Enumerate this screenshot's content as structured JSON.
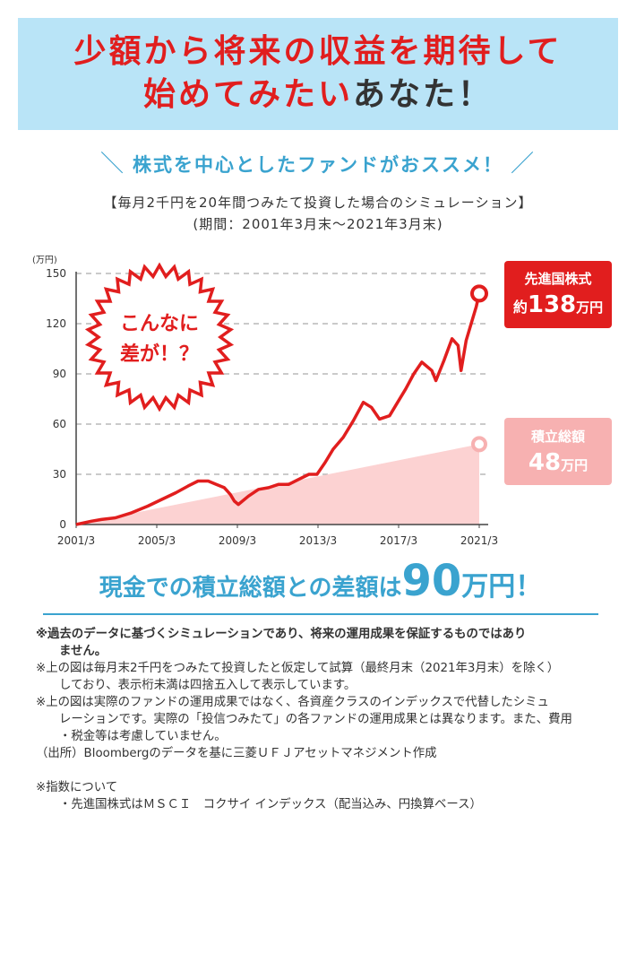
{
  "hero": {
    "line1": "少額から将来の収益を期待して",
    "line2_red": "始めてみたい",
    "line2_dark": "あなた！"
  },
  "subhead": {
    "slash_left": "＼",
    "text": "株式を中心としたファンドがおススメ！",
    "slash_right": "／"
  },
  "chart_title": {
    "line1": "【毎月2千円を20年間つみたて投資した場合のシミュレーション】",
    "line2": "(期間：2001年3月末〜2021年3月末)"
  },
  "headline": {
    "part1": "現金での積立総額との差額は",
    "amount": "90",
    "unit": "万円！"
  },
  "notes": [
    {
      "text": "※過去のデータに基づくシミュレーションであり、将来の運用成果を保証するものではあり",
      "bold": true
    },
    {
      "text": "ません。",
      "bold": true,
      "indent": true
    },
    {
      "text": "※上の図は毎月末2千円をつみたて投資したと仮定して試算（最終月末（2021年3月末）を除く）"
    },
    {
      "text": "しており、表示桁未満は四捨五入して表示しています。",
      "indent": true
    },
    {
      "text": "※上の図は実際のファンドの運用成果ではなく、各資産クラスのインデックスで代替したシミュ"
    },
    {
      "text": "レーションです。実際の「投信つみたて」の各ファンドの運用成果とは異なります。また、費用",
      "indent": true
    },
    {
      "text": "・税金等は考慮していません。",
      "indent": true
    },
    {
      "text": "（出所）Bloombergのデータを基に三菱ＵＦＪアセットマネジメント作成"
    },
    {
      "text": "※指数について",
      "gap": true
    },
    {
      "text": "・先進国株式はＭＳＣＩ　コクサイ インデックス（配当込み、円換算ベース）",
      "indent": true
    }
  ],
  "chart_data": {
    "type": "area",
    "y_unit": "(万円)",
    "ylim": [
      0,
      150
    ],
    "yticks": [
      0,
      30,
      60,
      90,
      120,
      150
    ],
    "xlim": [
      2001.25,
      2021.25
    ],
    "x_tick_labels": [
      "2001/3",
      "2005/3",
      "2009/3",
      "2013/3",
      "2017/3",
      "2021/3"
    ],
    "x_tick_values": [
      2001.25,
      2005.25,
      2009.25,
      2013.25,
      2017.25,
      2021.25
    ],
    "grid": "dashed-horizontal",
    "colors": {
      "equity_line": "#e11e1e",
      "savings_fill": "#fcd2d2",
      "grid": "#aaaaaa",
      "label_red_bg": "#e11e1e",
      "label_pink_bg": "#f7b1b1"
    },
    "burst": {
      "line1": "こんなに",
      "line2": "差が！？"
    },
    "series": [
      {
        "name": "先進国株式",
        "label_line1": "先進国株式",
        "label_prefix": "約",
        "label_value": "138",
        "label_unit": "万円",
        "x": [
          2001.25,
          2002.0,
          2002.5,
          2003.2,
          2004.0,
          2004.8,
          2005.5,
          2006.2,
          2006.8,
          2007.3,
          2007.8,
          2008.2,
          2008.6,
          2008.9,
          2009.1,
          2009.3,
          2009.8,
          2010.3,
          2010.8,
          2011.3,
          2011.8,
          2012.3,
          2012.8,
          2013.2,
          2013.6,
          2014.0,
          2014.5,
          2015.0,
          2015.5,
          2015.9,
          2016.3,
          2016.8,
          2017.2,
          2017.6,
          2018.0,
          2018.4,
          2018.9,
          2019.1,
          2019.5,
          2019.9,
          2020.2,
          2020.35,
          2020.6,
          2020.9,
          2021.1,
          2021.25
        ],
        "values": [
          0,
          2,
          3,
          4,
          7,
          11,
          15,
          19,
          23,
          26,
          26,
          24,
          22,
          18,
          14,
          12,
          17,
          21,
          22,
          24,
          24,
          27,
          30,
          30,
          37,
          45,
          52,
          62,
          73,
          70,
          63,
          65,
          73,
          81,
          90,
          97,
          92,
          86,
          98,
          111,
          107,
          92,
          110,
          122,
          130,
          138
        ]
      },
      {
        "name": "積立総額",
        "label_line1": "積立総額",
        "label_value": "48",
        "label_unit": "万円",
        "x": [
          2001.25,
          2021.25
        ],
        "values": [
          0,
          48
        ]
      }
    ]
  }
}
